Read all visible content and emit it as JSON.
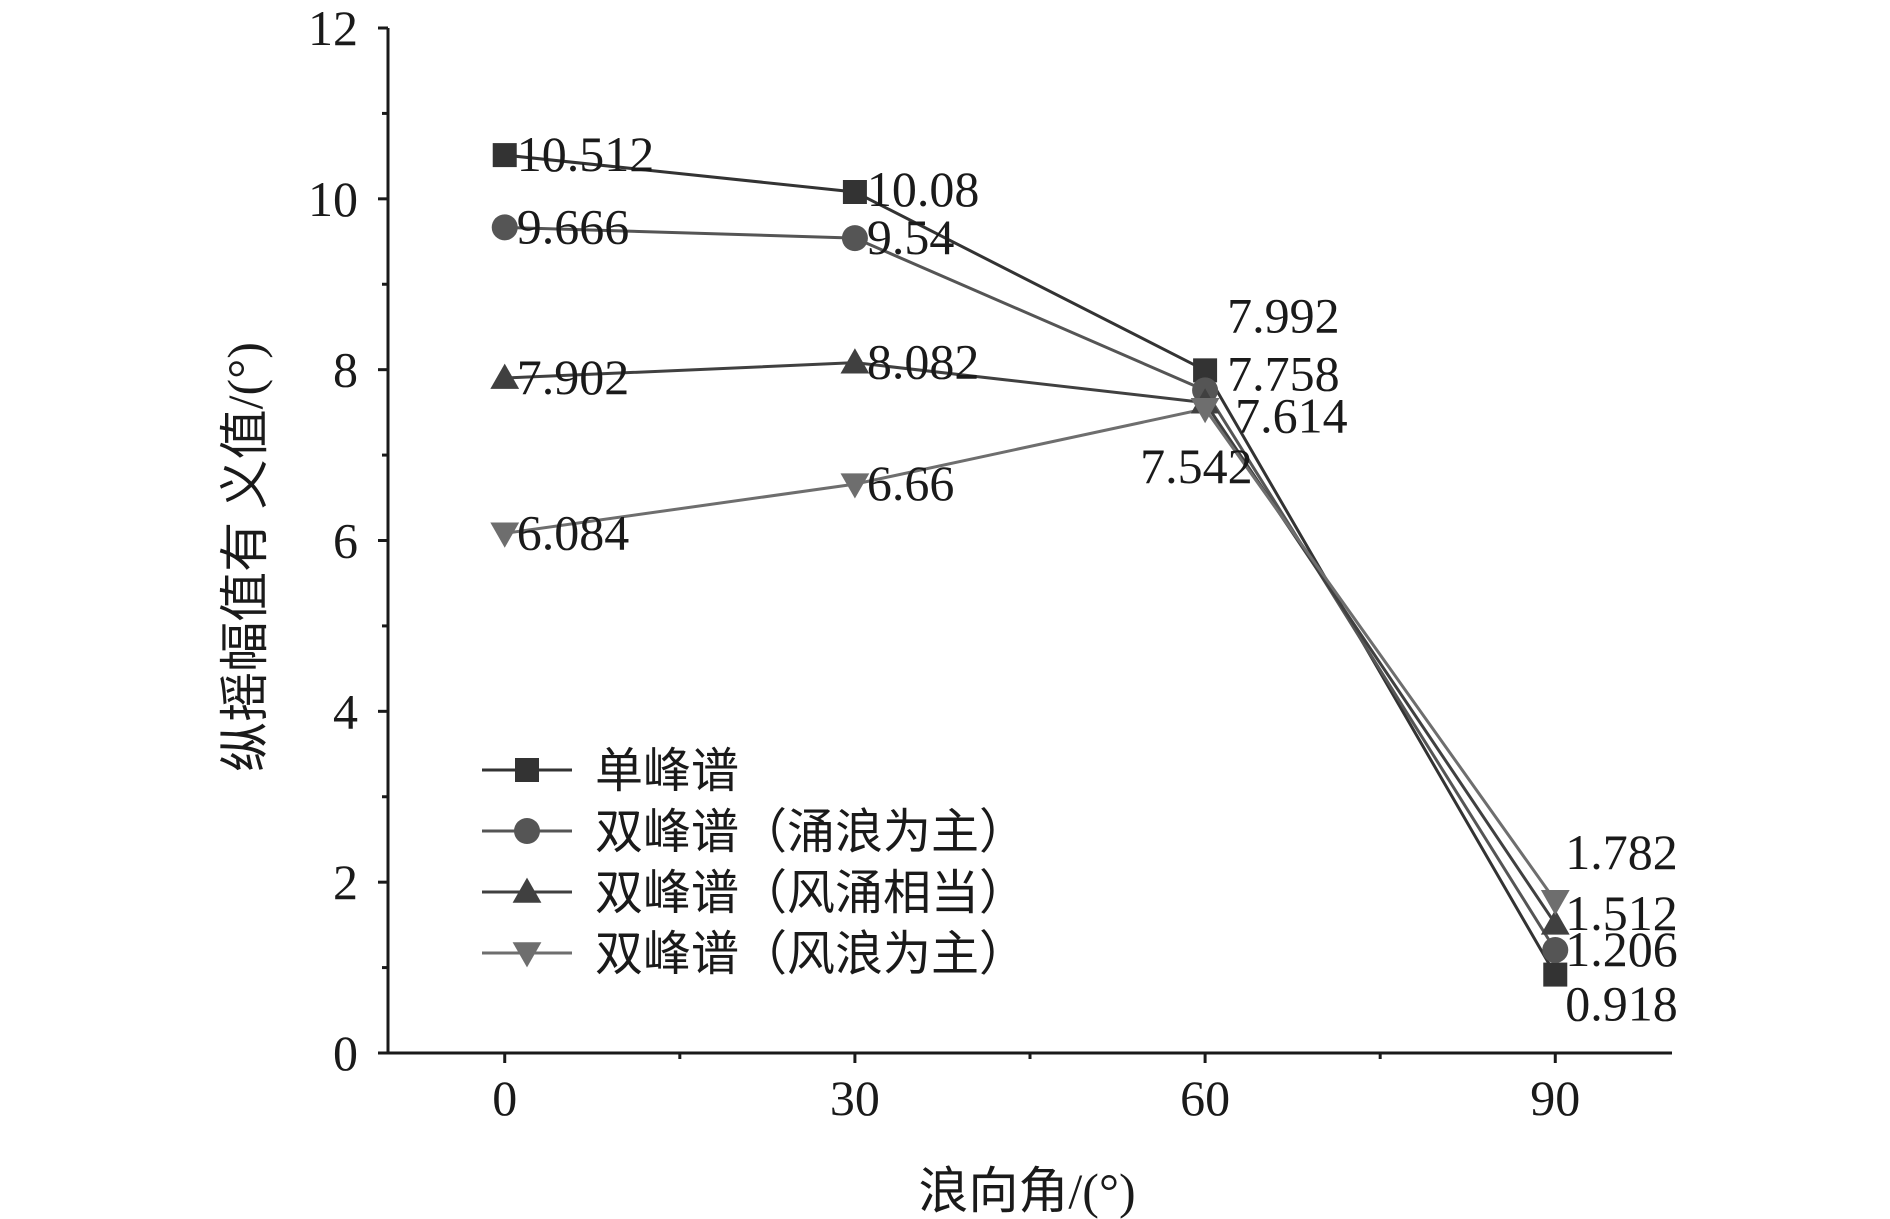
{
  "chart_data": {
    "type": "line",
    "xlabel": "浪向角/(°)",
    "ylabel": "纵摇幅值有 义值/(°)",
    "x": [
      0,
      30,
      60,
      90
    ],
    "xticks": [
      0,
      30,
      60,
      90
    ],
    "xlim": [
      -10,
      100
    ],
    "ylim": [
      0,
      12
    ],
    "yticks": [
      0,
      2,
      4,
      6,
      8,
      10,
      12
    ],
    "grid": false,
    "legend_position": "bottom-left",
    "series": [
      {
        "name": "单峰谱",
        "marker": "square",
        "color": "#333333",
        "values": [
          10.512,
          10.08,
          7.992,
          0.918
        ],
        "labels": [
          "10.512",
          "10.08",
          "7.992",
          "0.918"
        ]
      },
      {
        "name": "双峰谱（涌浪为主）",
        "marker": "circle",
        "color": "#555555",
        "values": [
          9.666,
          9.54,
          7.758,
          1.206
        ],
        "labels": [
          "9.666",
          "9.54",
          "7.758",
          "1.206"
        ]
      },
      {
        "name": "双峰谱（风涌相当）",
        "marker": "triangle-up",
        "color": "#404040",
        "values": [
          7.902,
          8.082,
          7.614,
          1.512
        ],
        "labels": [
          "7.902",
          "8.082",
          "7.614",
          "1.512"
        ]
      },
      {
        "name": "双峰谱（风浪为主）",
        "marker": "triangle-down",
        "color": "#6e6e6e",
        "values": [
          6.084,
          6.66,
          7.542,
          1.782
        ],
        "labels": [
          "6.084",
          "6.66",
          "7.542",
          "1.782"
        ]
      }
    ]
  }
}
